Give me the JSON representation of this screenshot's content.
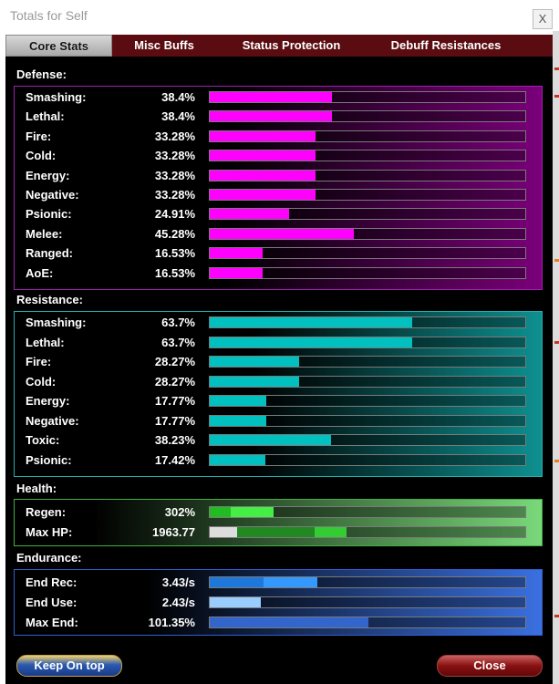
{
  "window": {
    "title": "Totals for Self",
    "close_glyph": "X"
  },
  "tabs": [
    {
      "label": "Core Stats",
      "active": true
    },
    {
      "label": "Misc Buffs",
      "active": false
    },
    {
      "label": "Status Protection",
      "active": false
    },
    {
      "label": "Debuff Resistances",
      "active": false
    }
  ],
  "defense": {
    "heading": "Defense:",
    "color": "#ff00ff",
    "rows": [
      {
        "label": "Smashing:",
        "value": "38.4%",
        "pct": 38.4
      },
      {
        "label": "Lethal:",
        "value": "38.4%",
        "pct": 38.4
      },
      {
        "label": "Fire:",
        "value": "33.28%",
        "pct": 33.28
      },
      {
        "label": "Cold:",
        "value": "33.28%",
        "pct": 33.28
      },
      {
        "label": "Energy:",
        "value": "33.28%",
        "pct": 33.28
      },
      {
        "label": "Negative:",
        "value": "33.28%",
        "pct": 33.28
      },
      {
        "label": "Psionic:",
        "value": "24.91%",
        "pct": 24.91
      },
      {
        "label": "Melee:",
        "value": "45.28%",
        "pct": 45.28
      },
      {
        "label": "Ranged:",
        "value": "16.53%",
        "pct": 16.53
      },
      {
        "label": "AoE:",
        "value": "16.53%",
        "pct": 16.53
      }
    ]
  },
  "resistance": {
    "heading": "Resistance:",
    "color": "#00c0c0",
    "rows": [
      {
        "label": "Smashing:",
        "value": "63.7%",
        "pct": 63.7
      },
      {
        "label": "Lethal:",
        "value": "63.7%",
        "pct": 63.7
      },
      {
        "label": "Fire:",
        "value": "28.27%",
        "pct": 28.27
      },
      {
        "label": "Cold:",
        "value": "28.27%",
        "pct": 28.27
      },
      {
        "label": "Energy:",
        "value": "17.77%",
        "pct": 17.77
      },
      {
        "label": "Negative:",
        "value": "17.77%",
        "pct": 17.77
      },
      {
        "label": "Toxic:",
        "value": "38.23%",
        "pct": 38.23
      },
      {
        "label": "Psionic:",
        "value": "17.42%",
        "pct": 17.42
      }
    ]
  },
  "health": {
    "heading": "Health:",
    "color": "#6fe06f",
    "rows": [
      {
        "label": "Regen:",
        "value": "302%",
        "segments": [
          {
            "frac": 0.065,
            "color": "#22bb22"
          },
          {
            "frac": 0.135,
            "color": "#44ee44"
          }
        ]
      },
      {
        "label": "Max HP:",
        "value": "1963.77",
        "segments": [
          {
            "frac": 0.085,
            "color": "#dddddd"
          },
          {
            "frac": 0.245,
            "color": "#228822"
          },
          {
            "frac": 0.1,
            "color": "#33cc33"
          }
        ]
      }
    ]
  },
  "endurance": {
    "heading": "Endurance:",
    "color": "#3f78e8",
    "rows": [
      {
        "label": "End Rec:",
        "value": "3.43/s",
        "segments": [
          {
            "frac": 0.17,
            "color": "#1e78dc"
          },
          {
            "frac": 0.17,
            "color": "#3399ff"
          }
        ]
      },
      {
        "label": "End Use:",
        "value": "2.43/s",
        "segments": [
          {
            "frac": 0.16,
            "color": "#99ccff"
          }
        ]
      },
      {
        "label": "Max End:",
        "value": "101.35%",
        "segments": [
          {
            "frac": 0.5,
            "color": "#3366cc"
          }
        ]
      }
    ]
  },
  "buttons": {
    "keep_on_top": "Keep On top",
    "close": "Close"
  }
}
